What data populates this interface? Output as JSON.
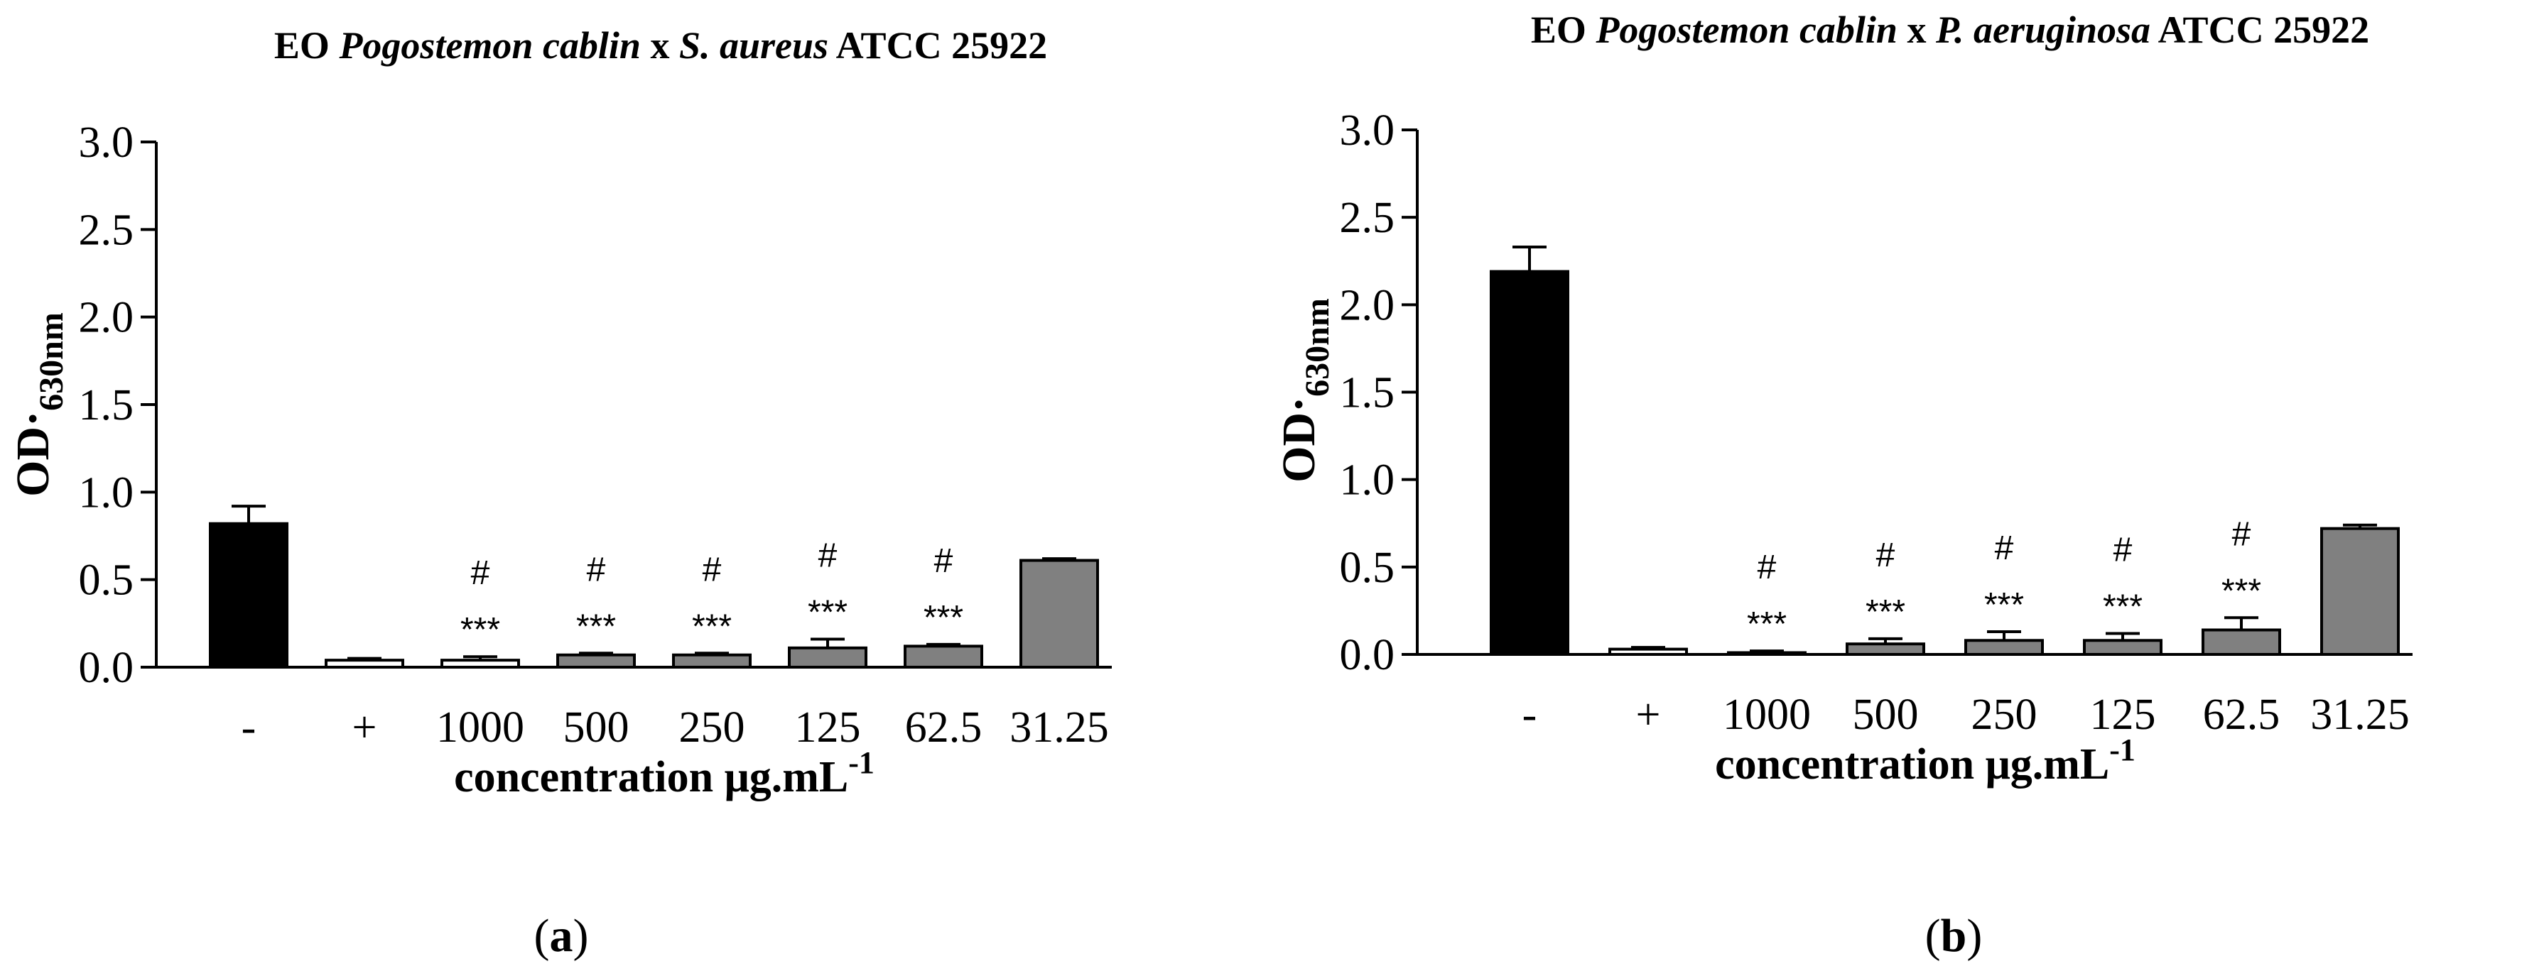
{
  "chart_data": [
    {
      "type": "bar",
      "title_parts": [
        "EO ",
        "Pogostemon cablin",
        " x ",
        "S. aureus",
        " ATCC 25922"
      ],
      "ylabel_main": "OD",
      "ylabel_sub": "630nm",
      "ylabel_mid": "·",
      "xlabel_main": "concentration μg.mL",
      "xlabel_sup": "-1",
      "ylim": [
        0,
        3.0
      ],
      "yticks": [
        "0.0",
        "0.5",
        "1.0",
        "1.5",
        "2.0",
        "2.5",
        "3.0"
      ],
      "categories": [
        "-",
        "+",
        "1000",
        "500",
        "250",
        "125",
        "62.5",
        "31.25"
      ],
      "values": [
        0.82,
        0.04,
        0.04,
        0.07,
        0.07,
        0.11,
        0.12,
        0.61
      ],
      "errors": [
        0.1,
        0.01,
        0.02,
        0.01,
        0.01,
        0.05,
        0.01,
        0.01
      ],
      "colors": [
        "#000000",
        "#ffffff",
        "#ffffff",
        "#808080",
        "#808080",
        "#808080",
        "#808080",
        "#808080"
      ],
      "sig_hash": [
        "",
        "",
        "#",
        "#",
        "#",
        "#",
        "#",
        ""
      ],
      "sig_star": [
        "",
        "",
        "***",
        "***",
        "***",
        "***",
        "***",
        ""
      ],
      "panel_label": "(a)"
    },
    {
      "type": "bar",
      "title_parts": [
        "EO ",
        "Pogostemon cablin",
        "  x ",
        "P. aeruginosa",
        " ATCC 25922"
      ],
      "ylabel_main": "OD",
      "ylabel_sub": "630nm",
      "ylabel_mid": "·",
      "xlabel_main": "concentration μg.mL",
      "xlabel_sup": "-1",
      "ylim": [
        0,
        3.0
      ],
      "yticks": [
        "0.0",
        "0.5",
        "1.0",
        "1.5",
        "2.0",
        "2.5",
        "3.0"
      ],
      "categories": [
        "-",
        "+",
        "1000",
        "500",
        "250",
        "125",
        "62.5",
        "31.25"
      ],
      "values": [
        2.19,
        0.03,
        0.01,
        0.06,
        0.08,
        0.08,
        0.14,
        0.72
      ],
      "errors": [
        0.14,
        0.01,
        0.01,
        0.03,
        0.05,
        0.04,
        0.07,
        0.02
      ],
      "colors": [
        "#000000",
        "#ffffff",
        "#ffffff",
        "#808080",
        "#808080",
        "#808080",
        "#808080",
        "#808080"
      ],
      "sig_hash": [
        "",
        "",
        "#",
        "#",
        "#",
        "#",
        "#",
        ""
      ],
      "sig_star": [
        "",
        "",
        "***",
        "***",
        "***",
        "***",
        "***",
        ""
      ],
      "panel_label": "(b)"
    }
  ]
}
